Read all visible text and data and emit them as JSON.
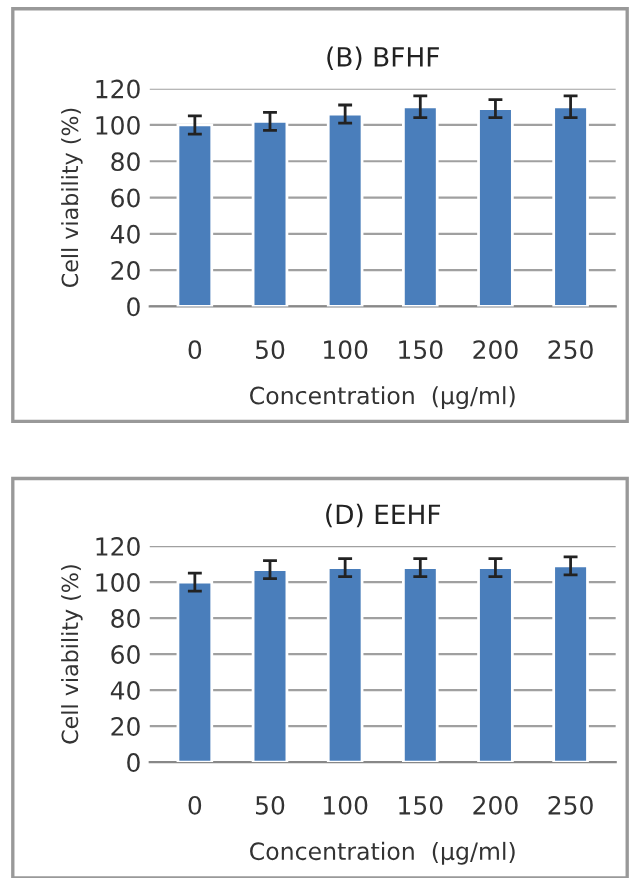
{
  "chart_data": [
    {
      "type": "bar",
      "title": "(B) BFHF",
      "xlabel": "Concentration  (μg/ml)",
      "ylabel": "Cell viability (%)",
      "categories": [
        "0",
        "50",
        "100",
        "150",
        "200",
        "250"
      ],
      "series": [
        {
          "color": "#4a7ebb",
          "values": [
            100,
            102,
            106,
            110,
            109,
            110
          ],
          "errors": [
            5,
            5,
            5,
            6,
            5,
            6
          ]
        }
      ],
      "ylim": [
        0,
        120
      ],
      "yticks": [
        0,
        20,
        40,
        60,
        80,
        100,
        120
      ],
      "grid": "y",
      "legend": false
    },
    {
      "type": "bar",
      "title": "(D) EEHF",
      "xlabel": "Concentration  (μg/ml)",
      "ylabel": "Cell viability (%)",
      "categories": [
        "0",
        "50",
        "100",
        "150",
        "200",
        "250"
      ],
      "series": [
        {
          "color": "#4a7ebb",
          "values": [
            100,
            107,
            108,
            108,
            108,
            109
          ],
          "errors": [
            5,
            5,
            5,
            5,
            5,
            5
          ]
        }
      ],
      "ylim": [
        0,
        120
      ],
      "yticks": [
        0,
        20,
        40,
        60,
        80,
        100,
        120
      ],
      "grid": "y",
      "legend": false
    }
  ]
}
